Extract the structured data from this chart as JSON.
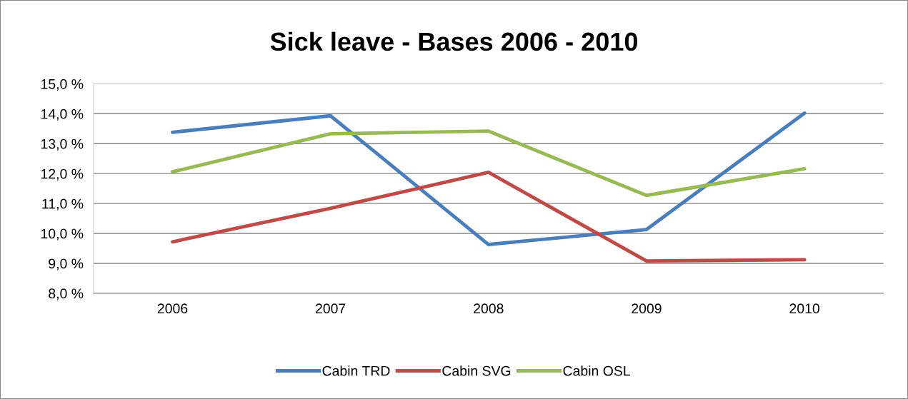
{
  "chart_data": {
    "type": "line",
    "title": "Sick leave - Bases 2006 - 2010",
    "categories": [
      "2006",
      "2007",
      "2008",
      "2009",
      "2010"
    ],
    "series": [
      {
        "name": "Cabin TRD",
        "color": "#4a7ebb",
        "values": [
          13.38,
          13.93,
          9.63,
          10.13,
          14.02
        ]
      },
      {
        "name": "Cabin SVG",
        "color": "#be4b48",
        "values": [
          9.72,
          10.84,
          12.04,
          9.08,
          9.12
        ]
      },
      {
        "name": "Cabin OSL",
        "color": "#98b954",
        "values": [
          12.06,
          13.33,
          13.42,
          11.27,
          12.16
        ]
      }
    ],
    "ylim": [
      8,
      15
    ],
    "yticks": [
      {
        "value": 8,
        "label": "8,0 %"
      },
      {
        "value": 9,
        "label": "9,0 %"
      },
      {
        "value": 10,
        "label": "10,0 %"
      },
      {
        "value": 11,
        "label": "11,0 %"
      },
      {
        "value": 12,
        "label": "12,0 %"
      },
      {
        "value": 13,
        "label": "13,0 %"
      },
      {
        "value": 14,
        "label": "14,0 %"
      },
      {
        "value": 15,
        "label": "15,0 %"
      }
    ],
    "grid": "y",
    "legend": "bottom",
    "marker": "none",
    "line_style": "solid"
  }
}
